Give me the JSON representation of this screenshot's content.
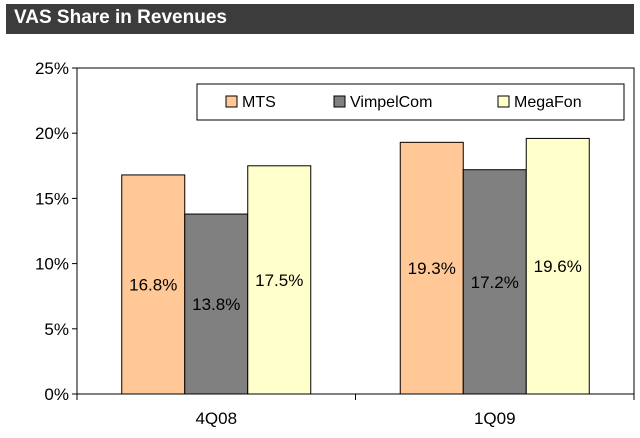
{
  "header": {
    "title": "VAS Share in Revenues"
  },
  "chart_data": {
    "type": "bar",
    "title": "VAS Share in Revenues",
    "categories": [
      "4Q08",
      "1Q09"
    ],
    "series": [
      {
        "name": "MTS",
        "values": [
          16.8,
          19.3
        ],
        "labels": [
          "16.8%",
          "19.3%"
        ],
        "color": "#FFC896"
      },
      {
        "name": "VimpelCom",
        "values": [
          13.8,
          17.2
        ],
        "labels": [
          "13.8%",
          "17.2%"
        ],
        "color": "#808080"
      },
      {
        "name": "MegaFon",
        "values": [
          17.5,
          19.6
        ],
        "labels": [
          "17.5%",
          "19.6%"
        ],
        "color": "#FFFFCC"
      }
    ],
    "ylim": [
      0,
      25
    ],
    "yticks": [
      "0%",
      "5%",
      "10%",
      "15%",
      "20%",
      "25%"
    ],
    "grid": false,
    "legend": "top-right"
  }
}
